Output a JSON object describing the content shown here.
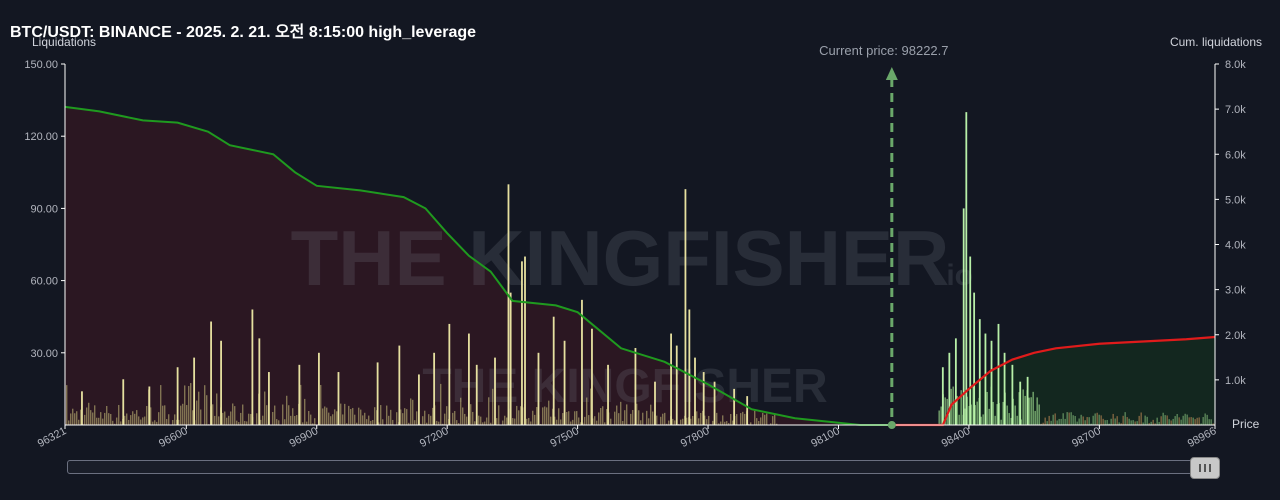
{
  "title": "BTC/USDT: BINANCE - 2025. 2. 21. 오전 8:15:00 high_leverage",
  "current_price_label": "Current price: 98222.7",
  "watermark": {
    "main": "THE KINGFISHER",
    "suffix": ".io"
  },
  "colors": {
    "background": "#131722",
    "long_fill": "#2b1722",
    "short_fill": "#13271f",
    "long_line": "#1f9a1f",
    "short_line": "#e01b1b",
    "bar_left": "#c8c07a",
    "bar_right": "#9fe08f",
    "current_price": "#6aa86a"
  },
  "chart_data": {
    "type": "bar",
    "xlabel": "Price",
    "ylabel": "Liquidations",
    "y2label": "Cum. liquidations",
    "xlim": [
      96321,
      98966
    ],
    "ylim": [
      0,
      150
    ],
    "y2lim": [
      0,
      8000
    ],
    "x_ticks": [
      "96321",
      "96600",
      "96900",
      "97200",
      "97500",
      "97800",
      "98100",
      "98400",
      "98700",
      "98966"
    ],
    "x_tick_values": [
      96321,
      96600,
      96900,
      97200,
      97500,
      97800,
      98100,
      98400,
      98700,
      98966
    ],
    "y_ticks": [
      "30.00",
      "60.00",
      "90.00",
      "120.00",
      "150.00"
    ],
    "y_tick_values": [
      30,
      60,
      90,
      120,
      150
    ],
    "y2_ticks": [
      "1.0k",
      "2.0k",
      "3.0k",
      "4.0k",
      "5.0k",
      "6.0k",
      "7.0k",
      "8.0k"
    ],
    "y2_tick_values": [
      1000,
      2000,
      3000,
      4000,
      5000,
      6000,
      7000,
      8000
    ],
    "current_price": 98222.7,
    "spikes": [
      {
        "x": 96360,
        "y": 14
      },
      {
        "x": 96455,
        "y": 19
      },
      {
        "x": 96515,
        "y": 16
      },
      {
        "x": 96580,
        "y": 24
      },
      {
        "x": 96618,
        "y": 28
      },
      {
        "x": 96657,
        "y": 43
      },
      {
        "x": 96680,
        "y": 35
      },
      {
        "x": 96752,
        "y": 48
      },
      {
        "x": 96768,
        "y": 36
      },
      {
        "x": 96790,
        "y": 22
      },
      {
        "x": 96860,
        "y": 25
      },
      {
        "x": 96905,
        "y": 30
      },
      {
        "x": 96950,
        "y": 22
      },
      {
        "x": 97040,
        "y": 26
      },
      {
        "x": 97090,
        "y": 33
      },
      {
        "x": 97135,
        "y": 21
      },
      {
        "x": 97170,
        "y": 30
      },
      {
        "x": 97205,
        "y": 42
      },
      {
        "x": 97250,
        "y": 38
      },
      {
        "x": 97268,
        "y": 25
      },
      {
        "x": 97310,
        "y": 28
      },
      {
        "x": 97341,
        "y": 100
      },
      {
        "x": 97346,
        "y": 55
      },
      {
        "x": 97372,
        "y": 68
      },
      {
        "x": 97379,
        "y": 70
      },
      {
        "x": 97410,
        "y": 30
      },
      {
        "x": 97445,
        "y": 45
      },
      {
        "x": 97470,
        "y": 35
      },
      {
        "x": 97510,
        "y": 52
      },
      {
        "x": 97533,
        "y": 40
      },
      {
        "x": 97570,
        "y": 25
      },
      {
        "x": 97633,
        "y": 32
      },
      {
        "x": 97678,
        "y": 18
      },
      {
        "x": 97715,
        "y": 38
      },
      {
        "x": 97728,
        "y": 33
      },
      {
        "x": 97748,
        "y": 98
      },
      {
        "x": 97757,
        "y": 48
      },
      {
        "x": 97770,
        "y": 28
      },
      {
        "x": 97790,
        "y": 22
      },
      {
        "x": 97815,
        "y": 18
      },
      {
        "x": 97860,
        "y": 15
      },
      {
        "x": 97890,
        "y": 12
      },
      {
        "x": 98340,
        "y": 24
      },
      {
        "x": 98355,
        "y": 30
      },
      {
        "x": 98370,
        "y": 36
      },
      {
        "x": 98388,
        "y": 90
      },
      {
        "x": 98394,
        "y": 130
      },
      {
        "x": 98403,
        "y": 70
      },
      {
        "x": 98412,
        "y": 55
      },
      {
        "x": 98425,
        "y": 44
      },
      {
        "x": 98438,
        "y": 38
      },
      {
        "x": 98452,
        "y": 35
      },
      {
        "x": 98468,
        "y": 42
      },
      {
        "x": 98482,
        "y": 30
      },
      {
        "x": 98500,
        "y": 25
      },
      {
        "x": 98518,
        "y": 18
      },
      {
        "x": 98535,
        "y": 20
      }
    ],
    "cumulative_long": [
      {
        "x": 96321,
        "y": 7050
      },
      {
        "x": 96400,
        "y": 6950
      },
      {
        "x": 96500,
        "y": 6750
      },
      {
        "x": 96580,
        "y": 6700
      },
      {
        "x": 96650,
        "y": 6500
      },
      {
        "x": 96700,
        "y": 6200
      },
      {
        "x": 96750,
        "y": 6100
      },
      {
        "x": 96800,
        "y": 6000
      },
      {
        "x": 96850,
        "y": 5600
      },
      {
        "x": 96900,
        "y": 5300
      },
      {
        "x": 97000,
        "y": 5200
      },
      {
        "x": 97100,
        "y": 5050
      },
      {
        "x": 97150,
        "y": 4800
      },
      {
        "x": 97200,
        "y": 4250
      },
      {
        "x": 97250,
        "y": 3750
      },
      {
        "x": 97300,
        "y": 3400
      },
      {
        "x": 97350,
        "y": 2750
      },
      {
        "x": 97450,
        "y": 2650
      },
      {
        "x": 97500,
        "y": 2500
      },
      {
        "x": 97600,
        "y": 1700
      },
      {
        "x": 97700,
        "y": 1400
      },
      {
        "x": 97800,
        "y": 900
      },
      {
        "x": 97900,
        "y": 350
      },
      {
        "x": 98000,
        "y": 150
      },
      {
        "x": 98150,
        "y": 0
      },
      {
        "x": 98222.7,
        "y": 0
      }
    ],
    "cumulative_short": [
      {
        "x": 98222.7,
        "y": 0
      },
      {
        "x": 98340,
        "y": 0
      },
      {
        "x": 98360,
        "y": 450
      },
      {
        "x": 98400,
        "y": 800
      },
      {
        "x": 98450,
        "y": 1200
      },
      {
        "x": 98500,
        "y": 1450
      },
      {
        "x": 98550,
        "y": 1600
      },
      {
        "x": 98600,
        "y": 1700
      },
      {
        "x": 98700,
        "y": 1800
      },
      {
        "x": 98800,
        "y": 1850
      },
      {
        "x": 98900,
        "y": 1900
      },
      {
        "x": 98966,
        "y": 1950
      }
    ]
  }
}
